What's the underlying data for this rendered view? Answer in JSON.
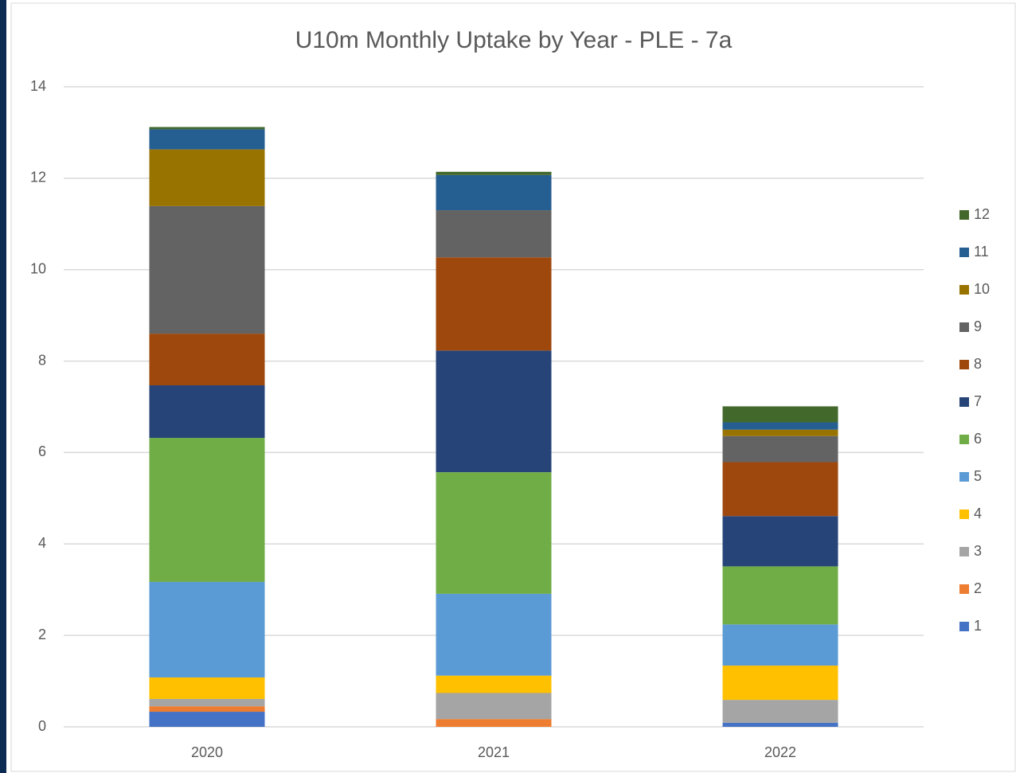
{
  "chart_data": {
    "type": "stacked_bar",
    "title": "U10m Monthly Uptake by Year - PLE - 7a",
    "categories": [
      "2020",
      "2021",
      "2022"
    ],
    "series": [
      {
        "name": "1",
        "color": "#4472c4",
        "values": [
          0.33,
          0,
          0.09
        ]
      },
      {
        "name": "2",
        "color": "#ed7d31",
        "values": [
          0.12,
          0.17,
          0
        ]
      },
      {
        "name": "3",
        "color": "#a5a5a5",
        "values": [
          0.16,
          0.57,
          0.5
        ]
      },
      {
        "name": "4",
        "color": "#ffc000",
        "values": [
          0.47,
          0.38,
          0.75
        ]
      },
      {
        "name": "5",
        "color": "#5b9bd5",
        "values": [
          2.09,
          1.79,
          0.9
        ]
      },
      {
        "name": "6",
        "color": "#70ad47",
        "values": [
          3.15,
          2.66,
          1.27
        ]
      },
      {
        "name": "7",
        "color": "#264478",
        "values": [
          1.15,
          2.66,
          1.1
        ]
      },
      {
        "name": "8",
        "color": "#9e480e",
        "values": [
          1.13,
          2.04,
          1.18
        ]
      },
      {
        "name": "9",
        "color": "#636363",
        "values": [
          2.79,
          1.03,
          0.57
        ]
      },
      {
        "name": "10",
        "color": "#997300",
        "values": [
          1.24,
          0,
          0.14
        ]
      },
      {
        "name": "11",
        "color": "#255e91",
        "values": [
          0.44,
          0.77,
          0.16
        ]
      },
      {
        "name": "12",
        "color": "#43682b",
        "values": [
          0.05,
          0.07,
          0.35
        ]
      }
    ],
    "ylim": [
      0,
      14
    ],
    "yticks": [
      0,
      2,
      4,
      6,
      8,
      10,
      12,
      14
    ],
    "grid": true,
    "legend": "right"
  }
}
